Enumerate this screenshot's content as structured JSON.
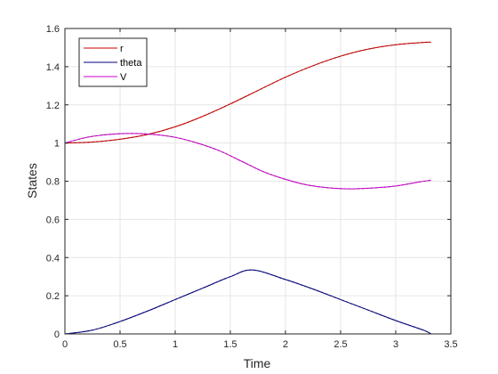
{
  "chart_data": {
    "type": "line",
    "xlabel": "Time",
    "ylabel": "States",
    "xlim": [
      0,
      3.5
    ],
    "ylim": [
      0,
      1.6
    ],
    "xticks": [
      "0",
      "0.5",
      "1",
      "1.5",
      "2",
      "2.5",
      "3",
      "3.5"
    ],
    "yticks": [
      "0",
      "0.2",
      "0.4",
      "0.6",
      "0.8",
      "1",
      "1.2",
      "1.4",
      "1.6"
    ],
    "grid": true,
    "legend_position": "top-left",
    "series": [
      {
        "name": "r",
        "color": "#cc0000",
        "x": [
          0,
          0.25,
          0.5,
          0.75,
          1.0,
          1.25,
          1.5,
          1.75,
          2.0,
          2.25,
          2.5,
          2.75,
          3.0,
          3.25,
          3.32
        ],
        "y": [
          1.0,
          1.005,
          1.02,
          1.045,
          1.085,
          1.14,
          1.205,
          1.275,
          1.345,
          1.405,
          1.455,
          1.492,
          1.515,
          1.527,
          1.528
        ]
      },
      {
        "name": "theta",
        "color": "#00007f",
        "x": [
          0,
          0.25,
          0.5,
          0.75,
          1.0,
          1.25,
          1.5,
          1.7,
          2.0,
          2.25,
          2.5,
          2.75,
          3.0,
          3.25,
          3.32
        ],
        "y": [
          0.0,
          0.02,
          0.065,
          0.12,
          0.18,
          0.24,
          0.3,
          0.335,
          0.285,
          0.235,
          0.18,
          0.125,
          0.07,
          0.02,
          0.0
        ]
      },
      {
        "name": "V",
        "color": "#cc00cc",
        "x": [
          0,
          0.2,
          0.4,
          0.6,
          0.8,
          1.0,
          1.2,
          1.4,
          1.6,
          1.8,
          2.0,
          2.2,
          2.4,
          2.6,
          2.8,
          3.0,
          3.2,
          3.32
        ],
        "y": [
          1.0,
          1.03,
          1.045,
          1.05,
          1.045,
          1.03,
          1.0,
          0.96,
          0.905,
          0.85,
          0.81,
          0.78,
          0.765,
          0.76,
          0.765,
          0.775,
          0.795,
          0.805
        ]
      }
    ]
  }
}
